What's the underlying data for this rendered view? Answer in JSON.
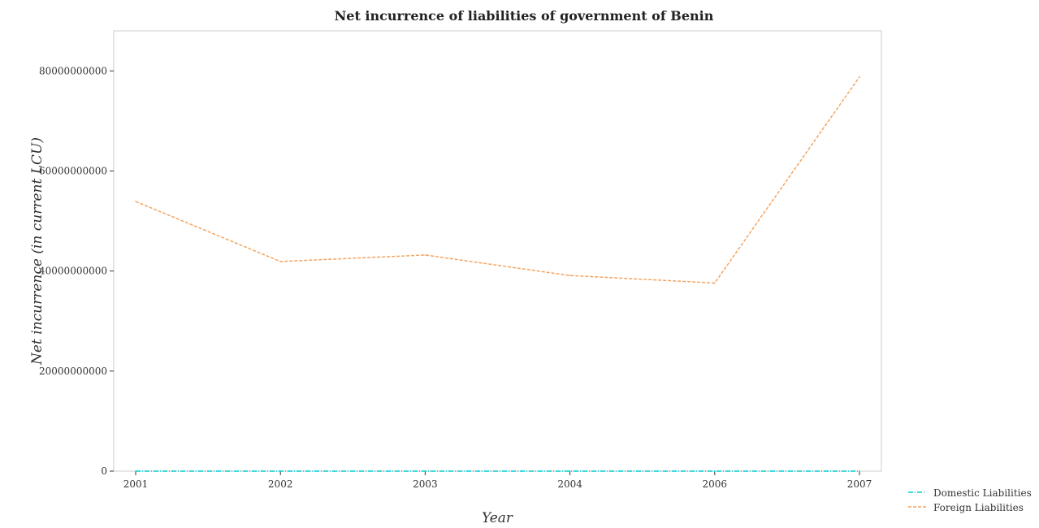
{
  "chart_data": {
    "type": "line",
    "title": "Net incurrence of liabilities of government of Benin",
    "xlabel": "Year",
    "ylabel": "Net incurrence (in current LCU)",
    "categories": [
      "2001",
      "2002",
      "2003",
      "2004",
      "2006",
      "2007"
    ],
    "yticks": [
      0,
      20000000000,
      40000000000,
      60000000000,
      80000000000
    ],
    "ytick_labels": [
      "0",
      "20000000000",
      "40000000000",
      "60000000000",
      "80000000000"
    ],
    "ylim": [
      0,
      88000000000
    ],
    "grid": false,
    "legend_position": "bottom-right",
    "series": [
      {
        "name": "Domestic Liabilities",
        "color": "#00cdcd",
        "style": "dash-dot",
        "values": [
          0,
          0,
          0,
          0,
          0,
          0
        ]
      },
      {
        "name": "Foreign Liabilities",
        "color": "#f4a460",
        "style": "dashed",
        "values": [
          53900000000,
          41900000000,
          43200000000,
          39100000000,
          37600000000,
          78800000000
        ]
      }
    ]
  }
}
